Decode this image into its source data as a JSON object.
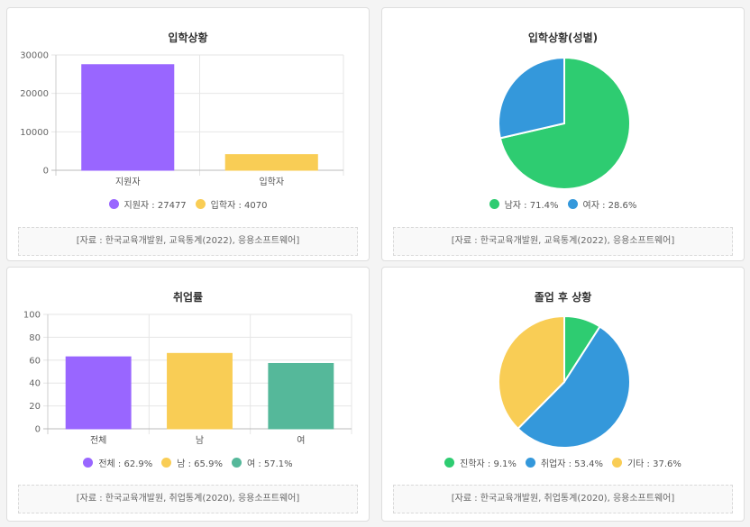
{
  "chart_data": [
    {
      "type": "bar",
      "title": "입학상황",
      "categories": [
        "지원자",
        "입학자"
      ],
      "values": [
        27477,
        4070
      ],
      "colors": [
        "#9966ff",
        "#f9cd55"
      ],
      "ylim": [
        0,
        30000
      ],
      "yticks": [
        "0",
        "10000",
        "20000",
        "30000"
      ],
      "legend": [
        "지원자 : 27477",
        "입학자 : 4070"
      ],
      "grid": true,
      "legend_position": "bottom",
      "source": "[자료 : 한국교육개발원, 교육통계(2022), 응용소프트웨어]"
    },
    {
      "type": "pie",
      "title": "입학상황(성별)",
      "categories": [
        "남자",
        "여자"
      ],
      "values": [
        71.4,
        28.6
      ],
      "colors": [
        "#2ecc71",
        "#3498db"
      ],
      "legend": [
        "남자 : 71.4%",
        "여자 : 28.6%"
      ],
      "legend_position": "bottom",
      "source": "[자료 : 한국교육개발원, 교육통계(2022), 응용소프트웨어]"
    },
    {
      "type": "bar",
      "title": "취업률",
      "categories": [
        "전체",
        "남",
        "여"
      ],
      "values": [
        62.9,
        65.9,
        57.1
      ],
      "colors": [
        "#9966ff",
        "#f9cd55",
        "#55b89a"
      ],
      "ylim": [
        0,
        100
      ],
      "yticks": [
        "0",
        "20",
        "40",
        "60",
        "80",
        "100"
      ],
      "legend": [
        "전체 : 62.9%",
        "남 : 65.9%",
        "여 : 57.1%"
      ],
      "grid": true,
      "legend_position": "bottom",
      "source": "[자료 : 한국교육개발원, 취업통계(2020), 응용소프트웨어]"
    },
    {
      "type": "pie",
      "title": "졸업 후 상황",
      "categories": [
        "진학자",
        "취업자",
        "기타"
      ],
      "values": [
        9.1,
        53.4,
        37.6
      ],
      "colors": [
        "#2ecc71",
        "#3498db",
        "#f9cd55"
      ],
      "legend": [
        "진학자 : 9.1%",
        "취업자 : 53.4%",
        "기타 : 37.6%"
      ],
      "legend_position": "bottom",
      "source": "[자료 : 한국교육개발원, 취업통계(2020), 응용소프트웨어]"
    }
  ]
}
